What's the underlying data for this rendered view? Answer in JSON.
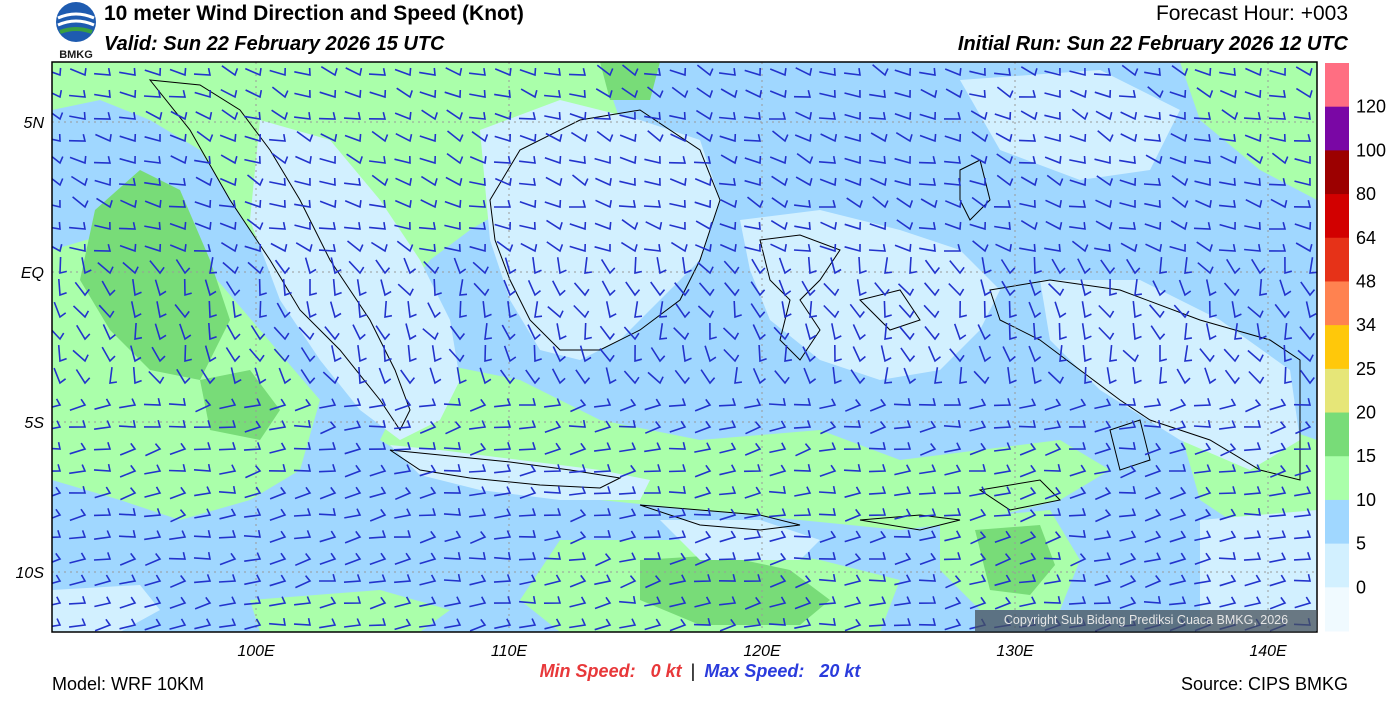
{
  "header": {
    "title": "10 meter Wind Direction and Speed (Knot)",
    "valid": "Valid: Sun 22 February 2026 15 UTC",
    "forecast_hour": "Forecast Hour: +003",
    "initial_run": "Initial Run: Sun 22 February 2026 12 UTC",
    "logo_text": "BMKG"
  },
  "map": {
    "lat_labels": [
      "5N",
      "EQ",
      "5S",
      "10S"
    ],
    "lon_labels": [
      "100E",
      "110E",
      "120E",
      "130E",
      "140E"
    ],
    "extent": {
      "lon_min": 92,
      "lon_max": 142,
      "lat_min": -12,
      "lat_max": 7
    }
  },
  "colorbar": {
    "labels": [
      "120",
      "100",
      "80",
      "64",
      "48",
      "34",
      "25",
      "20",
      "15",
      "10",
      "5",
      "0"
    ],
    "colors": [
      "#ff6e82",
      "#7a07a5",
      "#9c0000",
      "#d20000",
      "#e63218",
      "#ff8250",
      "#ffc80a",
      "#e6e678",
      "#78dc78",
      "#aaffaa",
      "#a0d7ff",
      "#d2f0ff",
      "#f0faff"
    ]
  },
  "footer": {
    "model": "Model: WRF 10KM",
    "min_label": "Min Speed:",
    "min_value": "0 kt",
    "separator": "|",
    "max_label": "Max Speed:",
    "max_value": "20 kt",
    "source": "Source: CIPS BMKG",
    "copyright": "Copyright Sub Bidang Prediksi Cuaca BMKG, 2026"
  }
}
